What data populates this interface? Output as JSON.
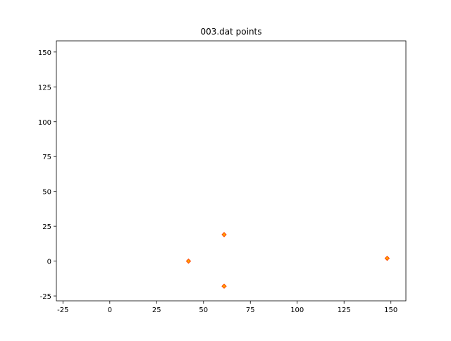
{
  "chart_data": {
    "type": "scatter",
    "title": "003.dat points",
    "xlabel": "",
    "ylabel": "",
    "xlim": [
      -28.5,
      158
    ],
    "ylim": [
      -28.5,
      158
    ],
    "x_ticks": [
      -25,
      0,
      25,
      50,
      75,
      100,
      125,
      150
    ],
    "y_ticks": [
      -25,
      0,
      25,
      50,
      75,
      100,
      125,
      150
    ],
    "grid": false,
    "marker": "diamond",
    "marker_face_color": "#ffffff",
    "marker_edge_color": "#ff4500",
    "marker_fill_color": "#ffa500",
    "series": [
      {
        "x": [
          42,
          61,
          61,
          148
        ],
        "y": [
          0,
          19,
          -18,
          2
        ]
      }
    ]
  }
}
